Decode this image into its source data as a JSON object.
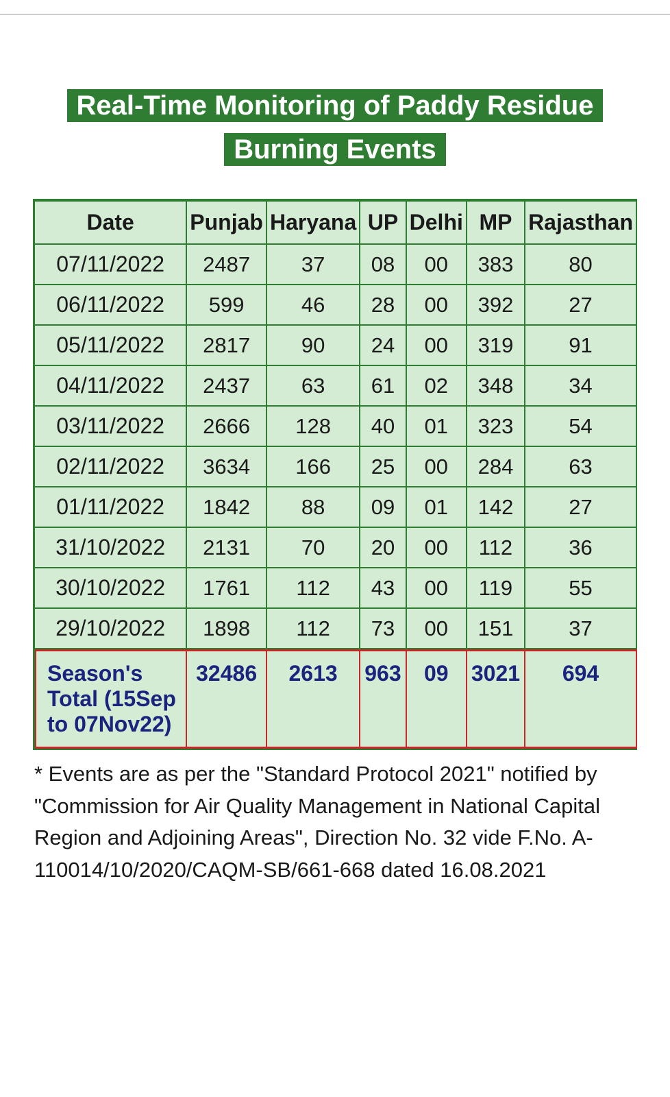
{
  "title_line1": "Real-Time Monitoring of Paddy Residue",
  "title_line2": "Burning Events",
  "table": {
    "columns": [
      "Date",
      "Punjab",
      "Haryana",
      "UP",
      "Delhi",
      "MP",
      "Rajasthan"
    ],
    "rows": [
      [
        "07/11/2022",
        "2487",
        "37",
        "08",
        "00",
        "383",
        "80"
      ],
      [
        "06/11/2022",
        "599",
        "46",
        "28",
        "00",
        "392",
        "27"
      ],
      [
        "05/11/2022",
        "2817",
        "90",
        "24",
        "00",
        "319",
        "91"
      ],
      [
        "04/11/2022",
        "2437",
        "63",
        "61",
        "02",
        "348",
        "34"
      ],
      [
        "03/11/2022",
        "2666",
        "128",
        "40",
        "01",
        "323",
        "54"
      ],
      [
        "02/11/2022",
        "3634",
        "166",
        "25",
        "00",
        "284",
        "63"
      ],
      [
        "01/11/2022",
        "1842",
        "88",
        "09",
        "01",
        "142",
        "27"
      ],
      [
        "31/10/2022",
        "2131",
        "70",
        "20",
        "00",
        "112",
        "36"
      ],
      [
        "30/10/2022",
        "1761",
        "112",
        "43",
        "00",
        "119",
        "55"
      ],
      [
        "29/10/2022",
        "1898",
        "112",
        "73",
        "00",
        "151",
        "37"
      ]
    ],
    "total_label": "Season's Total (15Sep to 07Nov22)",
    "totals": [
      "32486",
      "2613",
      "963",
      "09",
      "3021",
      "694"
    ],
    "header_bg": "#d4ecd4",
    "cell_bg": "#d4ecd4",
    "border_color": "#2e7d32",
    "total_border_color": "#c62828",
    "total_text_color": "#1a237e",
    "header_fontsize": 32,
    "cell_fontsize": 31
  },
  "footnote": "* Events are as per the \"Standard Protocol 2021\" notified by \"Commission for Air Quality Management in National Capital Region and Adjoining Areas\", Direction No. 32 vide F.No. A-110014/10/2020/CAQM-SB/661-668 dated 16.08.2021",
  "colors": {
    "title_bg": "#2e7d32",
    "title_text": "#ffffff",
    "page_bg": "#ffffff",
    "text": "#1a1a1a"
  }
}
